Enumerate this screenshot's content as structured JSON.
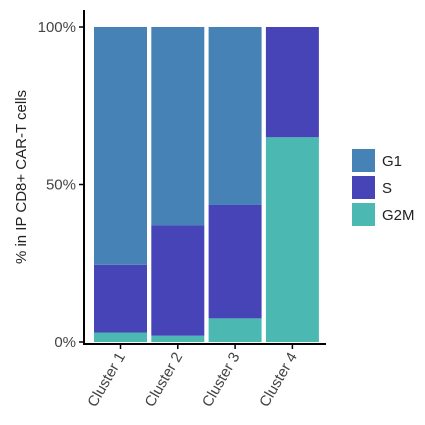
{
  "chart_data": {
    "type": "bar",
    "stacked": true,
    "percent": true,
    "title": "",
    "xlabel": "",
    "ylabel": "% in IP CD8+ CAR-T cells",
    "ylim": [
      0,
      100
    ],
    "y_ticks": [
      "0%",
      "50%",
      "100%"
    ],
    "y_tick_values": [
      0,
      50,
      100
    ],
    "categories": [
      "Cluster 1",
      "Cluster 2",
      "Cluster 3",
      "Cluster 4"
    ],
    "series": [
      {
        "name": "G1",
        "color": "#4782b6",
        "values": [
          75.5,
          63.0,
          56.5,
          0.0
        ]
      },
      {
        "name": "S",
        "color": "#4744b8",
        "values": [
          21.5,
          35.0,
          36.0,
          35.0
        ]
      },
      {
        "name": "G2M",
        "color": "#4bb9b1",
        "values": [
          3.0,
          2.0,
          7.5,
          65.0
        ]
      }
    ],
    "legend": {
      "position": "right",
      "items": [
        "G1",
        "S",
        "G2M"
      ]
    },
    "grid": false
  }
}
